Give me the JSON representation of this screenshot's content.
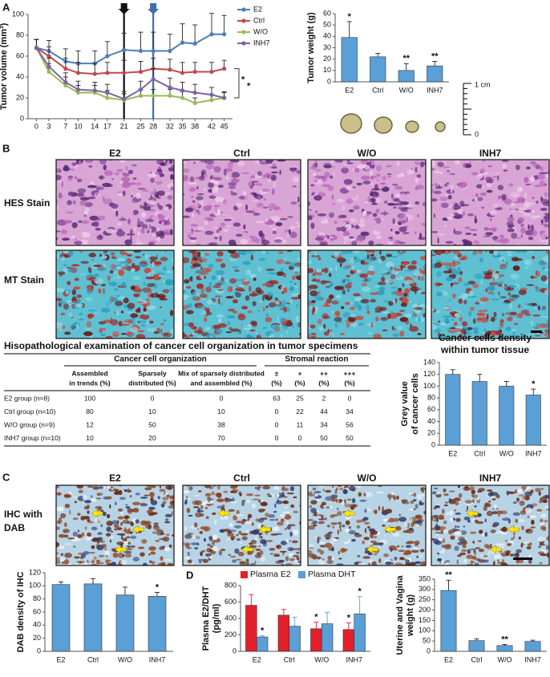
{
  "chart_data": [
    {
      "type": "line",
      "ylabel": "Tumor volume (mm³)",
      "x": [
        0,
        3,
        7,
        10,
        14,
        17,
        21,
        25,
        28,
        32,
        35,
        38,
        42,
        45
      ],
      "xlim": [
        -2,
        47
      ],
      "xticks": [
        0,
        3,
        7,
        10,
        14,
        17,
        21,
        25,
        28,
        32,
        35,
        38,
        42,
        45
      ],
      "ylim": [
        0,
        100
      ],
      "yticks": [
        0,
        20,
        40,
        60,
        80,
        100
      ],
      "vlines": [
        {
          "x": 21,
          "color": "#111111"
        },
        {
          "x": 28,
          "color": "#3f6ea8"
        }
      ],
      "annotations": [
        "*",
        "*"
      ],
      "series": [
        {
          "name": "E2",
          "color": "#4a7ebb",
          "values": [
            68,
            65,
            55,
            53,
            53,
            60,
            66,
            65,
            65,
            65,
            73,
            72,
            81,
            81
          ],
          "errors": [
            8,
            10,
            12,
            12,
            12,
            14,
            16,
            18,
            18,
            16,
            18,
            18,
            20,
            18
          ]
        },
        {
          "name": "Ctrl",
          "color": "#be4b48",
          "values": [
            68,
            60,
            48,
            44,
            43,
            44,
            44,
            45,
            48,
            47,
            44,
            45,
            45,
            48
          ],
          "errors": [
            8,
            9,
            10,
            10,
            10,
            10,
            12,
            10,
            10,
            10,
            10,
            9,
            9,
            8
          ]
        },
        {
          "name": "W/O",
          "color": "#9bbb59",
          "values": [
            68,
            45,
            32,
            25,
            25,
            20,
            18,
            22,
            22,
            22,
            20,
            15,
            18,
            20
          ],
          "errors": [
            8,
            8,
            8,
            7,
            7,
            7,
            6,
            6,
            6,
            6,
            6,
            5,
            5,
            5
          ]
        },
        {
          "name": "INH7",
          "color": "#7f64a2",
          "values": [
            68,
            50,
            35,
            28,
            27,
            25,
            19,
            28,
            38,
            30,
            27,
            25,
            23,
            20
          ],
          "errors": [
            8,
            8,
            9,
            8,
            8,
            8,
            7,
            8,
            10,
            9,
            8,
            8,
            7,
            6
          ]
        }
      ]
    },
    {
      "type": "bar",
      "ylabel": "Tumor weight (g)",
      "categories": [
        "E2",
        "Ctrl",
        "W/O",
        "INH7"
      ],
      "values": [
        39,
        22,
        10,
        14
      ],
      "errors": [
        14,
        3,
        6,
        4
      ],
      "significance": [
        "*",
        null,
        "**",
        "**"
      ],
      "color": "#5a9fd6",
      "ylim": [
        0,
        60
      ],
      "yticks": [
        0,
        10,
        20,
        30,
        40,
        50,
        60
      ]
    },
    {
      "type": "bar",
      "title": [
        "Cancer cells density",
        "within tumor tissue"
      ],
      "ylabel": [
        "Grey value",
        "of cancer cells"
      ],
      "categories": [
        "E2",
        "Ctrl",
        "W/O",
        "INH7"
      ],
      "values": [
        120,
        108,
        100,
        85
      ],
      "errors": [
        8,
        12,
        8,
        10
      ],
      "significance": [
        null,
        null,
        null,
        "*"
      ],
      "color": "#5a9fd6",
      "ylim": [
        0,
        140
      ],
      "yticks": [
        0,
        20,
        40,
        60,
        80,
        100,
        120,
        140
      ]
    },
    {
      "type": "bar",
      "ylabel": "DAB density of IHC",
      "categories": [
        "E2",
        "Ctrl",
        "W/O",
        "INH7"
      ],
      "values": [
        102,
        103,
        86,
        84
      ],
      "errors": [
        4,
        8,
        12,
        6
      ],
      "significance": [
        null,
        null,
        null,
        "*"
      ],
      "color": "#5a9fd6",
      "ylim": [
        0,
        120
      ],
      "yticks": [
        0,
        20,
        40,
        60,
        80,
        100,
        120
      ]
    },
    {
      "type": "bar",
      "ylabel": [
        "Plasma E2/DHT",
        "(pg/ml)"
      ],
      "categories": [
        "E2",
        "Ctrl",
        "W/O",
        "INH7"
      ],
      "ylim": [
        0,
        800
      ],
      "yticks": [
        0,
        200,
        400,
        600,
        800
      ],
      "series": [
        {
          "name": "Plasma E2",
          "color": "#e3202b",
          "values": [
            560,
            440,
            275,
            265
          ],
          "errors": [
            130,
            70,
            80,
            80
          ],
          "significance": [
            null,
            null,
            "*",
            "*"
          ]
        },
        {
          "name": "Plasma DHT",
          "color": "#5a9fd6",
          "values": [
            175,
            305,
            335,
            455
          ],
          "errors": [
            15,
            110,
            140,
            210
          ],
          "significance": [
            "*",
            null,
            null,
            "*"
          ]
        }
      ]
    },
    {
      "type": "bar",
      "ylabel": [
        "Uterine and Vagina",
        "weight (g)"
      ],
      "categories": [
        "E2",
        "Ctrl",
        "W/O",
        "INH7"
      ],
      "values": [
        295,
        52,
        28,
        48
      ],
      "errors": [
        50,
        8,
        5,
        6
      ],
      "significance": [
        "**",
        null,
        "**",
        null
      ],
      "color": "#5a9fd6",
      "ylim": [
        0,
        350
      ],
      "yticks": [
        0,
        50,
        100,
        150,
        200,
        250,
        300,
        350
      ]
    }
  ],
  "panels": {
    "a": "A",
    "b": "B",
    "c": "C",
    "d": "D"
  },
  "scale": {
    "top": "1 cm",
    "bottom": "0"
  },
  "panel_b": {
    "columns": [
      "E2",
      "Ctrl",
      "W/O",
      "INH7"
    ],
    "rows": [
      "HES Stain",
      "MT Stain"
    ]
  },
  "panel_c": {
    "columns": [
      "E2",
      "Ctrl",
      "W/O",
      "INH7"
    ],
    "rows": [
      "IHC with",
      "DAB"
    ]
  },
  "table": {
    "title": "Hisopathological examination of cancer cell organization in tumor specimens",
    "group_headers": [
      "Cancer cell organization",
      "Stromal reaction"
    ],
    "columns": [
      [
        "Assembled",
        "in trends (%)"
      ],
      [
        "Sparsely",
        "distributed (%)"
      ],
      [
        "Mix of sparsely distributed",
        "and assembled (%)"
      ],
      [
        "±",
        "(%)"
      ],
      [
        "+",
        "(%)"
      ],
      [
        "++",
        "(%)"
      ],
      [
        "+++",
        "(%)"
      ]
    ],
    "rows": [
      [
        "E2 group (n=8)",
        100,
        0,
        0,
        63,
        25,
        2,
        0
      ],
      [
        "Ctrl group (n=10)",
        80,
        10,
        10,
        0,
        22,
        44,
        34
      ],
      [
        "W/O group (n=9)",
        12,
        50,
        38,
        0,
        11,
        34,
        56
      ],
      [
        "INH7 group (n=10)",
        10,
        20,
        70,
        0,
        0,
        50,
        50
      ]
    ]
  }
}
